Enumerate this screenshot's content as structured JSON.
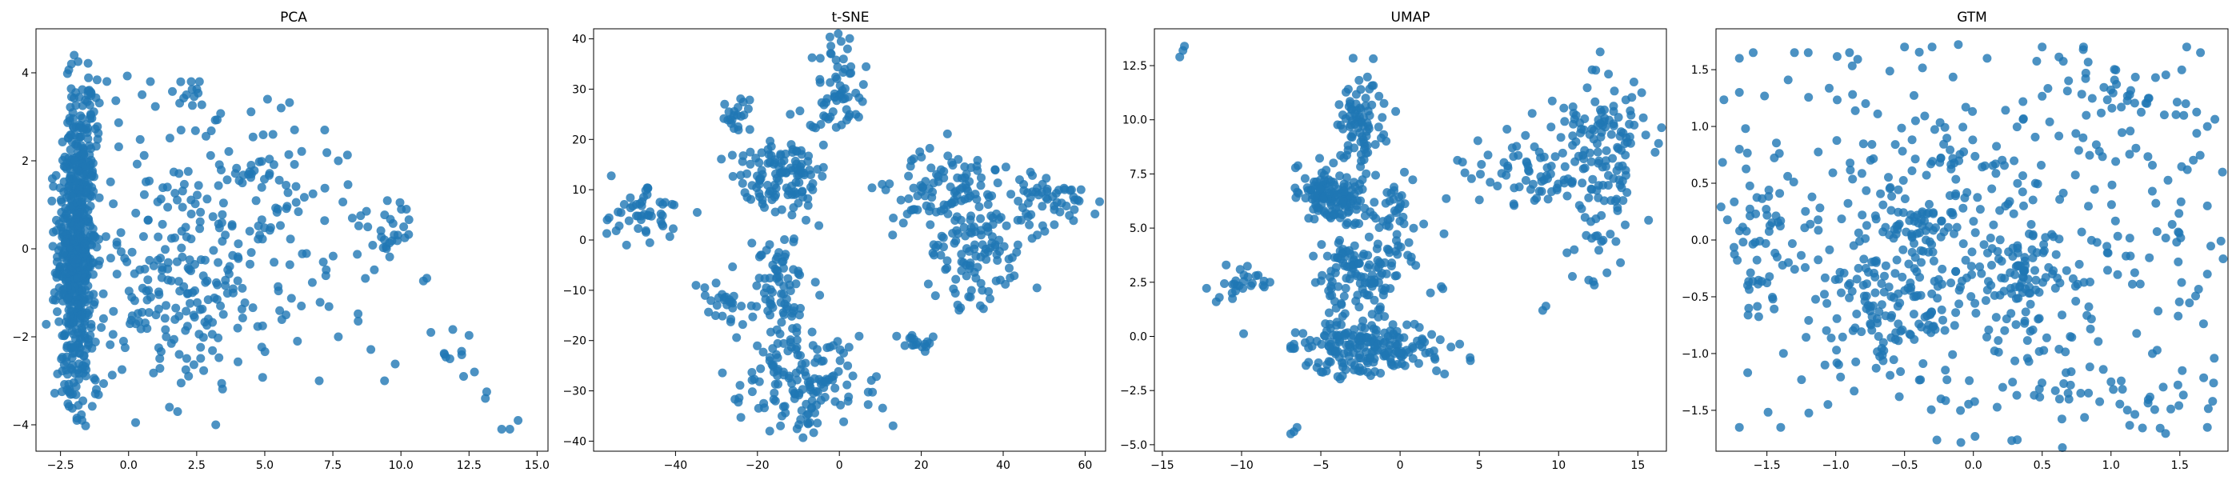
{
  "figure": {
    "marker_color": "#1f77b4",
    "marker_alpha": 0.8
  },
  "chart_data": [
    {
      "type": "scatter",
      "title": "PCA",
      "xlabel": "",
      "ylabel": "",
      "xlim": [
        -3.4,
        15.4
      ],
      "ylim": [
        -4.6,
        5.0
      ],
      "xticks": [
        -2.5,
        0.0,
        2.5,
        5.0,
        7.5,
        10.0,
        12.5,
        15.0
      ],
      "xtick_labels": [
        "−2.5",
        "0.0",
        "2.5",
        "5.0",
        "7.5",
        "10.0",
        "12.5",
        "15.0"
      ],
      "yticks": [
        -4,
        -2,
        0,
        2,
        4
      ],
      "ytick_labels": [
        "−4",
        "−2",
        "0",
        "2",
        "4"
      ],
      "grid": false,
      "clusters": [
        {
          "center": [
            -1.9,
            0.0
          ],
          "spread": [
            0.35,
            1.4
          ],
          "n": 520
        },
        {
          "center": [
            -1.7,
            3.0
          ],
          "spread": [
            0.3,
            0.6
          ],
          "n": 60
        },
        {
          "center": [
            -1.8,
            -2.8
          ],
          "spread": [
            0.4,
            0.5
          ],
          "n": 50
        },
        {
          "center": [
            1.5,
            -0.5
          ],
          "spread": [
            1.8,
            1.4
          ],
          "n": 170
        },
        {
          "center": [
            4.5,
            1.5
          ],
          "spread": [
            1.6,
            1.0
          ],
          "n": 70
        },
        {
          "center": [
            3.0,
            -1.5
          ],
          "spread": [
            1.5,
            0.7
          ],
          "n": 60
        },
        {
          "center": [
            9.5,
            0.5
          ],
          "spread": [
            0.6,
            0.4
          ],
          "n": 25
        },
        {
          "center": [
            7.5,
            -0.5
          ],
          "spread": [
            1.5,
            1.0
          ],
          "n": 25
        },
        {
          "center": [
            12.0,
            -2.5
          ],
          "spread": [
            0.8,
            0.4
          ],
          "n": 8
        },
        {
          "center": [
            1.2,
            3.5
          ],
          "spread": [
            1.0,
            0.3
          ],
          "n": 15
        }
      ],
      "points": [
        [
          -2.0,
          4.4
        ],
        [
          -2.1,
          4.2
        ],
        [
          2.3,
          3.8
        ],
        [
          2.6,
          3.8
        ],
        [
          0.8,
          3.8
        ],
        [
          5.1,
          3.4
        ],
        [
          5.6,
          3.2
        ],
        [
          5.3,
          2.6
        ],
        [
          14.3,
          -3.9
        ],
        [
          14.0,
          -4.1
        ],
        [
          13.7,
          -4.1
        ],
        [
          13.1,
          -3.4
        ],
        [
          12.7,
          -2.8
        ],
        [
          12.3,
          -2.9
        ],
        [
          11.8,
          -2.5
        ],
        [
          11.6,
          -2.4
        ],
        [
          11.1,
          -1.9
        ],
        [
          10.2,
          0.9
        ],
        [
          10.1,
          0.5
        ],
        [
          9.4,
          -3.0
        ],
        [
          7.7,
          -2.0
        ],
        [
          7.0,
          -3.0
        ],
        [
          3.2,
          -4.0
        ],
        [
          1.5,
          -3.6
        ],
        [
          1.8,
          -3.7
        ],
        [
          -1.9,
          -3.9
        ],
        [
          7.2,
          2.7
        ],
        [
          7.7,
          2.0
        ],
        [
          4.5,
          1.9
        ],
        [
          6.2,
          -2.1
        ]
      ]
    },
    {
      "type": "scatter",
      "title": "t-SNE",
      "xlabel": "",
      "ylabel": "",
      "xlim": [
        -60.0,
        65.0
      ],
      "ylim": [
        -42.0,
        42.0
      ],
      "xticks": [
        -40,
        -20,
        0,
        20,
        40,
        60
      ],
      "xtick_labels": [
        "−40",
        "−20",
        "0",
        "20",
        "40",
        "60"
      ],
      "yticks": [
        -40,
        -30,
        -20,
        -10,
        0,
        10,
        20,
        30,
        40
      ],
      "ytick_labels": [
        "−40",
        "−30",
        "−20",
        "−10",
        "0",
        "10",
        "20",
        "30",
        "40"
      ],
      "grid": false,
      "clusters": [
        {
          "center": [
            -48,
            6
          ],
          "spread": [
            5,
            3
          ],
          "n": 50
        },
        {
          "center": [
            -25,
            25
          ],
          "spread": [
            2,
            2
          ],
          "n": 20
        },
        {
          "center": [
            -15,
            12
          ],
          "spread": [
            6,
            4
          ],
          "n": 120
        },
        {
          "center": [
            0,
            30
          ],
          "spread": [
            3,
            6
          ],
          "n": 60
        },
        {
          "center": [
            -14,
            -10
          ],
          "spread": [
            4,
            6
          ],
          "n": 80
        },
        {
          "center": [
            -8,
            -28
          ],
          "spread": [
            8,
            5
          ],
          "n": 140
        },
        {
          "center": [
            25,
            10
          ],
          "spread": [
            8,
            4
          ],
          "n": 90
        },
        {
          "center": [
            50,
            8
          ],
          "spread": [
            6,
            3
          ],
          "n": 50
        },
        {
          "center": [
            33,
            -3
          ],
          "spread": [
            6,
            6
          ],
          "n": 110
        },
        {
          "center": [
            20,
            -20
          ],
          "spread": [
            3,
            1
          ],
          "n": 15
        },
        {
          "center": [
            -28,
            -12
          ],
          "spread": [
            3,
            3
          ],
          "n": 25
        }
      ],
      "points": [
        [
          2,
          38
        ],
        [
          1,
          36
        ],
        [
          -2,
          37
        ],
        [
          -12,
          25
        ],
        [
          -28,
          27
        ],
        [
          55,
          10
        ],
        [
          59,
          10
        ],
        [
          -17,
          -38
        ],
        [
          -14,
          -35
        ],
        [
          13,
          1
        ],
        [
          44,
          12
        ],
        [
          38,
          14
        ],
        [
          16,
          -21
        ],
        [
          -35,
          -9
        ]
      ]
    },
    {
      "type": "scatter",
      "title": "UMAP",
      "xlabel": "",
      "ylabel": "",
      "xlim": [
        -15.5,
        16.8
      ],
      "ylim": [
        -5.3,
        14.2
      ],
      "xticks": [
        -15,
        -10,
        -5,
        0,
        5,
        10,
        15
      ],
      "xtick_labels": [
        "−15",
        "−10",
        "−5",
        "0",
        "5",
        "10",
        "15"
      ],
      "yticks": [
        -5.0,
        -2.5,
        0.0,
        2.5,
        5.0,
        7.5,
        10.0,
        12.5
      ],
      "ytick_labels": [
        "−5.0",
        "−2.5",
        "0.0",
        "2.5",
        "5.0",
        "7.5",
        "10.0",
        "12.5"
      ],
      "grid": false,
      "clusters": [
        {
          "center": [
            -4.5,
            6.5
          ],
          "spread": [
            1.0,
            0.6
          ],
          "n": 120
        },
        {
          "center": [
            -2.5,
            9.5
          ],
          "spread": [
            0.7,
            1.3
          ],
          "n": 90
        },
        {
          "center": [
            -2.5,
            3.0
          ],
          "spread": [
            1.6,
            1.6
          ],
          "n": 140
        },
        {
          "center": [
            -2.0,
            -0.5
          ],
          "spread": [
            2.3,
            0.6
          ],
          "n": 200
        },
        {
          "center": [
            0.0,
            5.0
          ],
          "spread": [
            0.5,
            1.0
          ],
          "n": 30
        },
        {
          "center": [
            8.0,
            7.5
          ],
          "spread": [
            2.0,
            0.8
          ],
          "n": 60
        },
        {
          "center": [
            12.5,
            7.0
          ],
          "spread": [
            1.4,
            2.5
          ],
          "n": 110
        },
        {
          "center": [
            13.0,
            10.0
          ],
          "spread": [
            1.5,
            0.5
          ],
          "n": 40
        },
        {
          "center": [
            -10.0,
            2.5
          ],
          "spread": [
            0.8,
            0.3
          ],
          "n": 25
        }
      ],
      "points": [
        [
          -13.7,
          13.2
        ],
        [
          -13.9,
          12.9
        ],
        [
          -13.6,
          13.4
        ],
        [
          -6.7,
          -4.4
        ],
        [
          -6.5,
          -4.2
        ],
        [
          -6.9,
          -4.5
        ],
        [
          9.0,
          1.2
        ],
        [
          9.2,
          1.4
        ],
        [
          2.7,
          2.2
        ],
        [
          2.6,
          2.3
        ],
        [
          -11.4,
          1.8
        ],
        [
          -11.6,
          1.6
        ],
        [
          15.5,
          9.3
        ],
        [
          11.9,
          2.6
        ],
        [
          5.0,
          6.3
        ]
      ]
    },
    {
      "type": "scatter",
      "title": "GTM",
      "xlabel": "",
      "ylabel": "",
      "xlim": [
        -1.87,
        1.85
      ],
      "ylim": [
        -1.86,
        1.86
      ],
      "xticks": [
        -1.5,
        -1.0,
        -0.5,
        0.0,
        0.5,
        1.0,
        1.5
      ],
      "xtick_labels": [
        "−1.5",
        "−1.0",
        "−0.5",
        "0.0",
        "0.5",
        "1.0",
        "1.5"
      ],
      "yticks": [
        -1.5,
        -1.0,
        -0.5,
        0.0,
        0.5,
        1.0,
        1.5
      ],
      "ytick_labels": [
        "−1.5",
        "−1.0",
        "−0.5",
        "0.0",
        "0.5",
        "1.0",
        "1.5"
      ],
      "grid": false,
      "clusters": [
        {
          "center": [
            0.0,
            0.0
          ],
          "spread": [
            0.9,
            0.9
          ],
          "n": 480
        },
        {
          "center": [
            -0.6,
            -0.65
          ],
          "spread": [
            0.3,
            0.25
          ],
          "n": 90
        },
        {
          "center": [
            -0.4,
            0.15
          ],
          "spread": [
            0.15,
            0.12
          ],
          "n": 40
        },
        {
          "center": [
            -1.55,
            0.0
          ],
          "spread": [
            0.12,
            0.35
          ],
          "n": 50
        },
        {
          "center": [
            0.35,
            -0.3
          ],
          "spread": [
            0.08,
            0.2
          ],
          "n": 40
        },
        {
          "center": [
            1.1,
            1.3
          ],
          "spread": [
            0.25,
            0.1
          ],
          "n": 30
        },
        {
          "center": [
            1.0,
            -1.4
          ],
          "spread": [
            0.4,
            0.2
          ],
          "n": 40
        }
      ],
      "points": [
        [
          -1.7,
          1.6
        ],
        [
          -1.6,
          1.65
        ],
        [
          -1.3,
          1.65
        ],
        [
          -1.2,
          1.65
        ],
        [
          -0.9,
          1.65
        ],
        [
          -0.5,
          1.7
        ],
        [
          -0.3,
          1.7
        ],
        [
          0.1,
          1.6
        ],
        [
          0.5,
          1.7
        ],
        [
          0.8,
          1.7
        ],
        [
          1.55,
          1.7
        ],
        [
          1.65,
          1.65
        ],
        [
          -1.7,
          -1.65
        ],
        [
          -1.4,
          -1.65
        ],
        [
          1.7,
          -1.65
        ],
        [
          1.7,
          1.0
        ],
        [
          1.7,
          0.3
        ],
        [
          1.7,
          -0.3
        ],
        [
          -1.7,
          1.3
        ],
        [
          -1.7,
          0.8
        ]
      ]
    }
  ]
}
